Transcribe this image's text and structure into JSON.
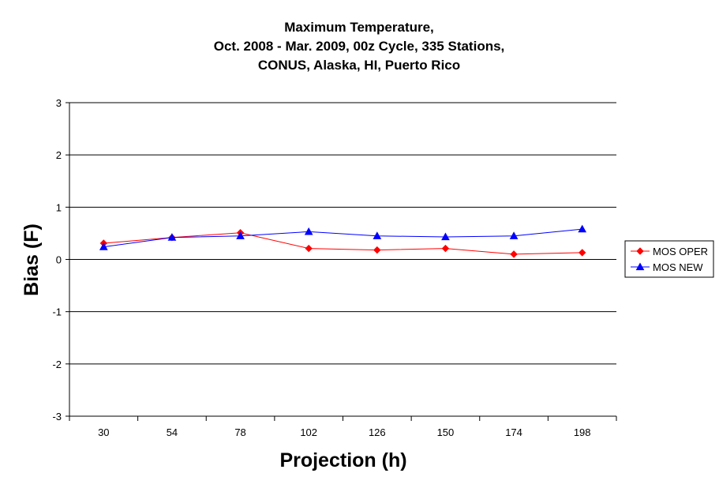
{
  "chart_data": {
    "type": "line",
    "title_lines": [
      "Maximum Temperature,",
      "Oct. 2008 - Mar. 2009, 00z Cycle, 335 Stations,",
      "CONUS, Alaska, HI, Puerto Rico"
    ],
    "xlabel": "Projection (h)",
    "ylabel": "Bias (F)",
    "categories": [
      "30",
      "54",
      "78",
      "102",
      "126",
      "150",
      "174",
      "198"
    ],
    "ylim": [
      -3,
      3
    ],
    "yticks": [
      3,
      2,
      1,
      0,
      -1,
      -2,
      -3
    ],
    "grid": true,
    "legend_position": "right",
    "series": [
      {
        "name": "MOS OPER",
        "color": "#ff0000",
        "marker": "diamond",
        "values": [
          0.31,
          0.42,
          0.51,
          0.21,
          0.18,
          0.21,
          0.1,
          0.13
        ]
      },
      {
        "name": "MOS NEW",
        "color": "#0000ff",
        "marker": "triangle",
        "values": [
          0.24,
          0.42,
          0.45,
          0.53,
          0.45,
          0.43,
          0.45,
          0.58
        ]
      }
    ]
  }
}
